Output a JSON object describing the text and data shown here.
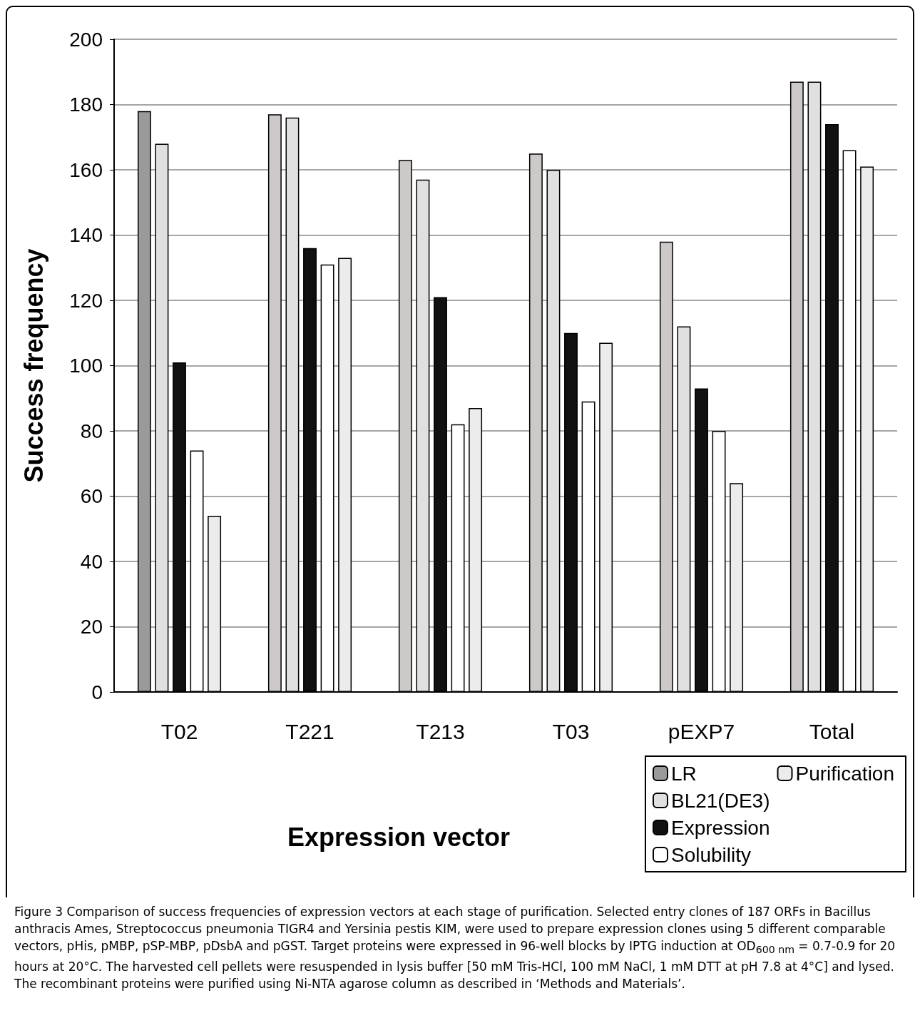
{
  "chart_data": {
    "type": "bar",
    "xlabel": "Expression vector",
    "ylabel": "Success frequency",
    "categories": [
      "T02",
      "T221",
      "T213",
      "T03",
      "pEXP7",
      "Total"
    ],
    "series": [
      {
        "name": "LR",
        "colors": [
          "#9a9a9a",
          "#cdc9c9",
          "#cdc9c9",
          "#cdc9c9",
          "#cdc9c9",
          "#cdc9c9"
        ],
        "values": [
          178,
          177,
          163,
          165,
          138,
          187
        ]
      },
      {
        "name": "BL21(DE3)",
        "color": "#e0e0e0",
        "values": [
          168,
          176,
          157,
          160,
          112,
          187
        ]
      },
      {
        "name": "Expression",
        "color": "#111111",
        "values": [
          101,
          136,
          121,
          110,
          93,
          174
        ]
      },
      {
        "name": "Solubility",
        "color": "#ffffff",
        "values": [
          74,
          131,
          82,
          89,
          80,
          166
        ]
      },
      {
        "name": "Purification",
        "color": "#ececec",
        "values": [
          54,
          133,
          87,
          107,
          64,
          161
        ]
      }
    ],
    "ylim": [
      0,
      200
    ],
    "yticks": [
      0,
      20,
      40,
      60,
      80,
      100,
      120,
      140,
      160,
      180,
      200
    ],
    "grid": "y",
    "legend": "bottom right",
    "annotations": [
      "Figure 3 Comparison of success frequencies of expression vectors at each stage of purification. Selected entry clones of 187 ORFs in Bacillus anthracis Ames, Streptococcus pneumonia TIGR4 and Yersinia pestis KIM, were used to prepare expression clones using 5 different comparable vectors, pHis, pMBP, pSP-MBP, pDsbA and pGST. Target proteins were expressed in 96-well blocks by IPTG induction at OD$_{600 nm}$ = 0.7-0.9 for 20 hours at 20°C. The harvested cell pellets were resuspended in lysis buffer [50 mM Tris-HCl, 100 mM NaCl, 1 mM DTT at pH 7.8 at 4°C] and lysed. The recombinant proteins were purified using Ni-NTA agarose column as described in ‘Methods and Materials’."
    ]
  }
}
